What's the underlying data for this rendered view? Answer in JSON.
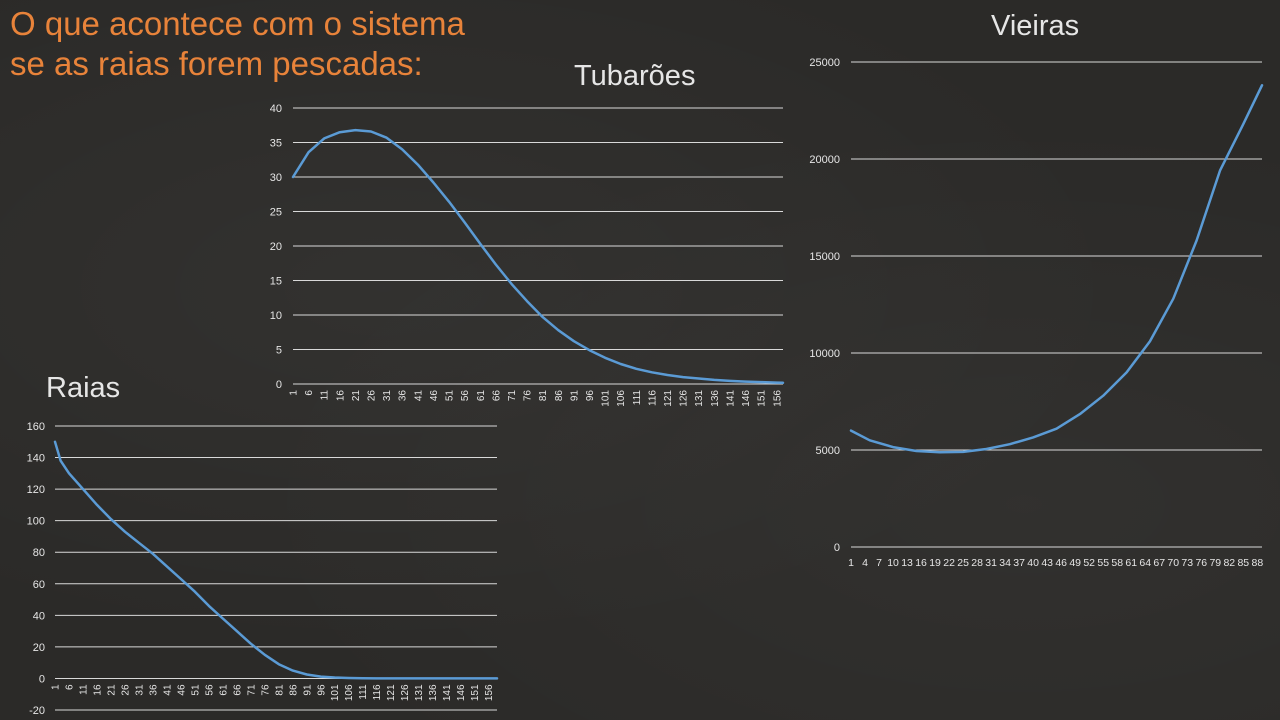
{
  "slide": {
    "title_line1": "O que acontece com  o sistema",
    "title_line2": "se as raias forem pescadas:"
  },
  "colors": {
    "background": "#2b2a28",
    "title": "#e8833a",
    "series_line": "#5b9bd5",
    "grid": "#d9d9d9",
    "text": "#e6e6e6"
  },
  "chart_data": [
    {
      "id": "tubaroes",
      "type": "line",
      "title": "Tubarões",
      "xlabel": "",
      "ylabel": "",
      "ylim": [
        0,
        40
      ],
      "yticks": [
        0,
        5,
        10,
        15,
        20,
        25,
        30,
        35,
        40
      ],
      "xlim": [
        1,
        158
      ],
      "xticks": [
        1,
        6,
        11,
        16,
        21,
        26,
        31,
        36,
        41,
        46,
        51,
        56,
        61,
        66,
        71,
        76,
        81,
        86,
        91,
        96,
        101,
        106,
        111,
        116,
        121,
        126,
        131,
        136,
        141,
        146,
        151,
        156
      ],
      "x": [
        1,
        6,
        11,
        16,
        21,
        26,
        31,
        36,
        41,
        46,
        51,
        56,
        61,
        66,
        71,
        76,
        81,
        86,
        91,
        96,
        101,
        106,
        111,
        116,
        121,
        126,
        131,
        136,
        141,
        146,
        151,
        156,
        158
      ],
      "values": [
        30,
        33.6,
        35.6,
        36.5,
        36.8,
        36.6,
        35.7,
        34.0,
        31.8,
        29.2,
        26.4,
        23.4,
        20.3,
        17.3,
        14.5,
        12.0,
        9.7,
        7.8,
        6.2,
        4.9,
        3.8,
        2.9,
        2.2,
        1.7,
        1.3,
        1.0,
        0.8,
        0.6,
        0.45,
        0.35,
        0.27,
        0.2,
        0.18
      ],
      "grid": true,
      "legend": "none"
    },
    {
      "id": "vieiras",
      "type": "line",
      "title": "Vieiras",
      "xlabel": "",
      "ylabel": "",
      "ylim": [
        0,
        25000
      ],
      "yticks": [
        0,
        5000,
        10000,
        15000,
        20000,
        25000
      ],
      "xlim": [
        1,
        89
      ],
      "xticks": [
        1,
        4,
        7,
        10,
        13,
        16,
        19,
        22,
        25,
        28,
        31,
        34,
        37,
        40,
        43,
        46,
        49,
        52,
        55,
        58,
        61,
        64,
        67,
        70,
        73,
        76,
        79,
        82,
        85,
        88
      ],
      "x": [
        1,
        5,
        10,
        15,
        20,
        25,
        30,
        35,
        40,
        45,
        50,
        55,
        60,
        65,
        70,
        75,
        80,
        85,
        89
      ],
      "values": [
        6000,
        5500,
        5150,
        4950,
        4880,
        4900,
        5050,
        5300,
        5650,
        6100,
        6850,
        7800,
        9000,
        10600,
        12800,
        15800,
        19400,
        21800,
        23800
      ],
      "grid": true,
      "legend": "none"
    },
    {
      "id": "raias",
      "type": "line",
      "title": "Raias",
      "xlabel": "",
      "ylabel": "",
      "ylim": [
        -20,
        160
      ],
      "yticks": [
        -20,
        0,
        20,
        40,
        60,
        80,
        100,
        120,
        140,
        160
      ],
      "xlim": [
        1,
        159
      ],
      "xticks": [
        1,
        6,
        11,
        16,
        21,
        26,
        31,
        36,
        41,
        46,
        51,
        56,
        61,
        66,
        71,
        76,
        81,
        86,
        91,
        96,
        101,
        106,
        111,
        116,
        121,
        126,
        131,
        136,
        141,
        146,
        151,
        156
      ],
      "x": [
        1,
        3,
        6,
        11,
        16,
        21,
        26,
        31,
        36,
        41,
        46,
        51,
        56,
        61,
        66,
        71,
        76,
        81,
        86,
        91,
        96,
        101,
        106,
        111,
        116,
        121,
        126,
        131,
        136,
        141,
        146,
        151,
        156,
        159
      ],
      "values": [
        150,
        138,
        130,
        120,
        110,
        101,
        93,
        86,
        79,
        71,
        63,
        55,
        46,
        38,
        30,
        22,
        15,
        9,
        5,
        2.5,
        1.2,
        0.6,
        0.3,
        0.1,
        0,
        0,
        0,
        0,
        0,
        0,
        0,
        0,
        0,
        0
      ],
      "grid": true,
      "legend": "none"
    }
  ]
}
